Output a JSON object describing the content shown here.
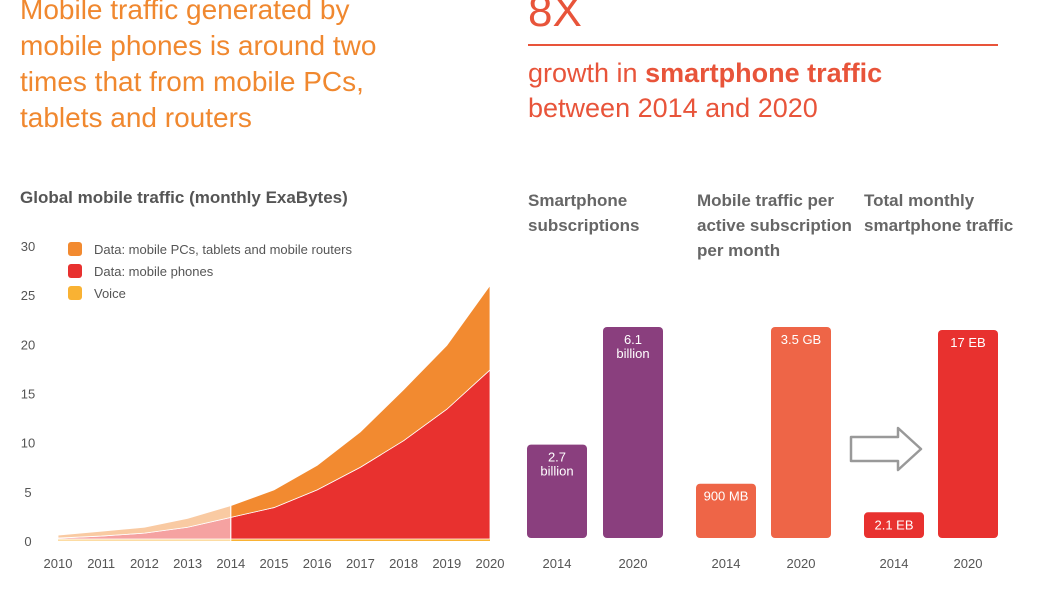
{
  "headline": "Mobile traffic generated by mobile phones is around two times that from mobile PCs, tablets and routers",
  "stat": {
    "value": "8X",
    "line1_prefix": "growth in ",
    "line1_bold": "smartphone traffic",
    "line2": "between 2014 and 2020"
  },
  "colors": {
    "orange": "#f28a30",
    "red": "#e8312f",
    "yellow": "#f9b233",
    "purple": "#8a3f7e",
    "coral": "#ee6547",
    "headline": "#f0882f"
  },
  "chart_data": [
    {
      "type": "area",
      "title": "Global mobile traffic (monthly ExaBytes)",
      "x": [
        "2010",
        "2011",
        "2012",
        "2013",
        "2014",
        "2015",
        "2016",
        "2017",
        "2018",
        "2019",
        "2020"
      ],
      "ylim": [
        0,
        30
      ],
      "yticks": [
        0,
        5,
        10,
        15,
        20,
        25,
        30
      ],
      "stacked": true,
      "legend_position": "top-left",
      "series": [
        {
          "name": "Voice",
          "color": "#f9b233",
          "values": [
            0.2,
            0.2,
            0.2,
            0.2,
            0.2,
            0.2,
            0.2,
            0.2,
            0.2,
            0.2,
            0.2
          ]
        },
        {
          "name": "Data: mobile phones",
          "color": "#e8312f",
          "values": [
            0.1,
            0.3,
            0.6,
            1.2,
            2.2,
            3.2,
            5.0,
            7.3,
            10.0,
            13.2,
            17.2
          ]
        },
        {
          "name": "Data: mobile PCs, tablets and mobile routers",
          "color": "#f28a30",
          "values": [
            0.3,
            0.5,
            0.6,
            0.9,
            1.2,
            1.8,
            2.5,
            3.6,
            5.2,
            6.5,
            8.6
          ]
        }
      ],
      "legend_order": [
        "Data: mobile PCs, tablets and mobile routers",
        "Data: mobile phones",
        "Voice"
      ],
      "forecast_from": "2014"
    },
    {
      "type": "bar",
      "title": "Smartphone subscriptions",
      "color": "#8a3f7e",
      "categories": [
        "2014",
        "2020"
      ],
      "values": [
        2.7,
        6.1
      ],
      "labels": [
        "2.7 billion",
        "6.1 billion"
      ]
    },
    {
      "type": "bar",
      "title": "Mobile traffic per active subscription per month",
      "color": "#ee6547",
      "categories": [
        "2014",
        "2020"
      ],
      "values": [
        0.9,
        3.5
      ],
      "labels": [
        "900 MB",
        "3.5 GB"
      ]
    },
    {
      "type": "bar",
      "title": "Total monthly smartphone traffic",
      "color": "#e8312f",
      "categories": [
        "2014",
        "2020"
      ],
      "values": [
        2.1,
        17
      ],
      "labels": [
        "2.1 EB",
        "17 EB"
      ]
    }
  ]
}
